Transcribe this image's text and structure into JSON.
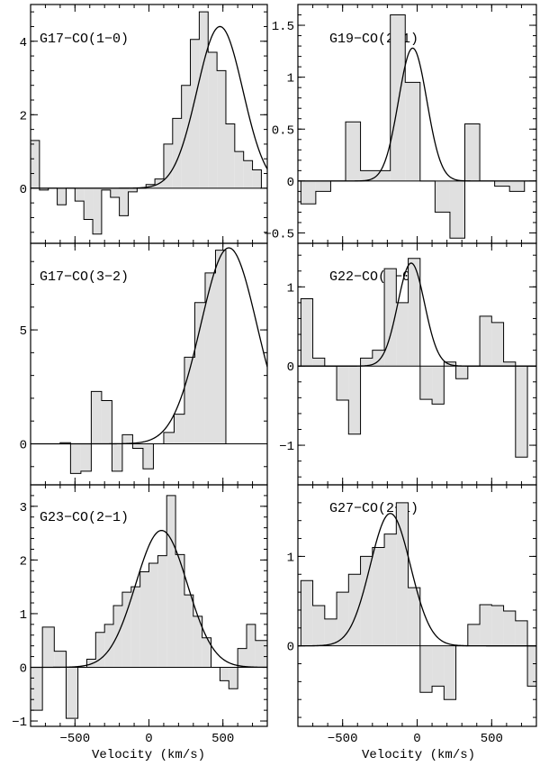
{
  "chart_data": [
    {
      "type": "bar",
      "title": "G17−CO(1−0)",
      "xlim": [
        -800,
        800
      ],
      "ylim": [
        -1.5,
        5.0
      ],
      "yticks": [
        0,
        2,
        4
      ],
      "ytick_labels": [
        "0",
        "2",
        "4"
      ],
      "histogram_edges": [
        -800,
        -740,
        -680,
        -620,
        -560,
        -500,
        -440,
        -380,
        -320,
        -260,
        -200,
        -140,
        -80,
        -20,
        40,
        100,
        160,
        220,
        280,
        340,
        400,
        460,
        520,
        580,
        640,
        700,
        760
      ],
      "histogram_values": [
        1.3,
        -0.05,
        0.0,
        -0.45,
        0.0,
        -0.35,
        -0.85,
        -1.25,
        -0.05,
        -0.25,
        -0.75,
        -0.1,
        0.0,
        0.1,
        0.25,
        1.2,
        1.9,
        2.8,
        4.05,
        4.8,
        3.7,
        3.2,
        1.75,
        1.0,
        0.75,
        0.5
      ],
      "fit_gaussian": {
        "amplitude": 4.4,
        "center": 480,
        "sigma": 155
      }
    },
    {
      "type": "bar",
      "title": "G19−CO(2−1)",
      "xlim": [
        -800,
        800
      ],
      "ylim": [
        -0.6,
        1.7
      ],
      "yticks": [
        -0.5,
        0,
        0.5,
        1,
        1.5
      ],
      "ytick_labels": [
        "−0.5",
        "0",
        "0.5",
        "1",
        "1.5"
      ],
      "histogram_edges": [
        -780,
        -680,
        -580,
        -480,
        -380,
        -280,
        -180,
        -80,
        20,
        120,
        220,
        320,
        420,
        520,
        620,
        720
      ],
      "histogram_values": [
        -0.22,
        -0.1,
        0.0,
        0.57,
        0.1,
        0.1,
        1.6,
        0.95,
        0.0,
        -0.3,
        -0.55,
        0.55,
        0.0,
        -0.05,
        -0.1
      ],
      "fit_gaussian": {
        "amplitude": 1.28,
        "center": -30,
        "sigma": 95
      }
    },
    {
      "type": "bar",
      "title": "G17−CO(3−2)",
      "xlim": [
        -800,
        800
      ],
      "ylim": [
        -1.8,
        8.8
      ],
      "yticks": [
        0,
        5
      ],
      "ytick_labels": [
        "0",
        "5"
      ],
      "histogram_edges": [
        -600,
        -530,
        -460,
        -390,
        -320,
        -250,
        -180,
        -110,
        -40,
        30,
        100,
        170,
        240,
        310,
        380,
        450,
        520,
        590
      ],
      "histogram_values": [
        0.05,
        -1.3,
        -1.2,
        2.3,
        1.9,
        -1.2,
        0.4,
        -0.2,
        -1.1,
        0.0,
        0.5,
        1.3,
        3.8,
        6.2,
        7.5,
        8.5,
        0
      ],
      "fit_gaussian": {
        "amplitude": 8.6,
        "center": 540,
        "sigma": 190
      }
    },
    {
      "type": "bar",
      "title": "G22−CO(1−0)",
      "xlim": [
        -800,
        800
      ],
      "ylim": [
        -1.5,
        1.55
      ],
      "yticks": [
        -1,
        0,
        1
      ],
      "ytick_labels": [
        "−1",
        "0",
        "1"
      ],
      "histogram_edges": [
        -780,
        -700,
        -620,
        -540,
        -460,
        -380,
        -300,
        -220,
        -140,
        -60,
        20,
        100,
        180,
        260,
        340,
        420,
        500,
        580,
        660,
        740,
        800
      ],
      "histogram_values": [
        0.85,
        0.1,
        0.0,
        -0.43,
        -0.86,
        0.1,
        0.2,
        1.23,
        0.8,
        1.36,
        -0.42,
        -0.48,
        0.05,
        -0.16,
        0.0,
        0.63,
        0.55,
        0.05,
        -1.15,
        0
      ],
      "fit_gaussian": {
        "amplitude": 1.3,
        "center": -40,
        "sigma": 90
      }
    },
    {
      "type": "bar",
      "title": "G23−CO(2−1)",
      "xlim": [
        -800,
        800
      ],
      "ylim": [
        -1.1,
        3.4
      ],
      "yticks": [
        -1,
        0,
        1,
        2,
        3
      ],
      "ytick_labels": [
        "−1",
        "0",
        "1",
        "2",
        "3"
      ],
      "histogram_edges": [
        -800,
        -720,
        -640,
        -560,
        -480,
        -420,
        -360,
        -300,
        -240,
        -180,
        -120,
        -60,
        0,
        60,
        120,
        180,
        240,
        300,
        360,
        420,
        480,
        540,
        600,
        660,
        720,
        800
      ],
      "histogram_values": [
        -0.8,
        0.75,
        0.3,
        -0.95,
        0.0,
        0.15,
        0.65,
        0.8,
        1.15,
        1.4,
        1.5,
        1.78,
        1.94,
        2.08,
        3.2,
        2.1,
        1.35,
        0.95,
        0.55,
        0.0,
        -0.25,
        -0.4,
        0.35,
        0.8,
        0.5
      ],
      "fit_gaussian": {
        "amplitude": 2.55,
        "center": 85,
        "sigma": 175
      }
    },
    {
      "type": "bar",
      "title": "G27−CO(2−1)",
      "xlim": [
        -800,
        800
      ],
      "ylim": [
        -0.9,
        1.8
      ],
      "yticks": [
        0,
        1
      ],
      "ytick_labels": [
        "0",
        "1"
      ],
      "histogram_edges": [
        -780,
        -700,
        -620,
        -540,
        -460,
        -380,
        -300,
        -220,
        -140,
        -60,
        20,
        100,
        180,
        260,
        340,
        420,
        500,
        580,
        660,
        740,
        800
      ],
      "histogram_values": [
        0.73,
        0.45,
        0.3,
        0.6,
        0.8,
        1.0,
        1.1,
        1.25,
        1.6,
        0.65,
        -0.52,
        -0.45,
        -0.6,
        0.0,
        0.24,
        0.46,
        0.45,
        0.39,
        0.28,
        -0.45
      ],
      "fit_gaussian": {
        "amplitude": 1.48,
        "center": -180,
        "sigma": 135
      }
    }
  ],
  "x_axis": {
    "label": "Velocity (km/s)",
    "ticks": [
      -500,
      0,
      500
    ],
    "tick_labels": [
      "−500",
      "0",
      "500"
    ]
  },
  "colors": {
    "fill": "#e0e0e0",
    "line": "#000000"
  }
}
